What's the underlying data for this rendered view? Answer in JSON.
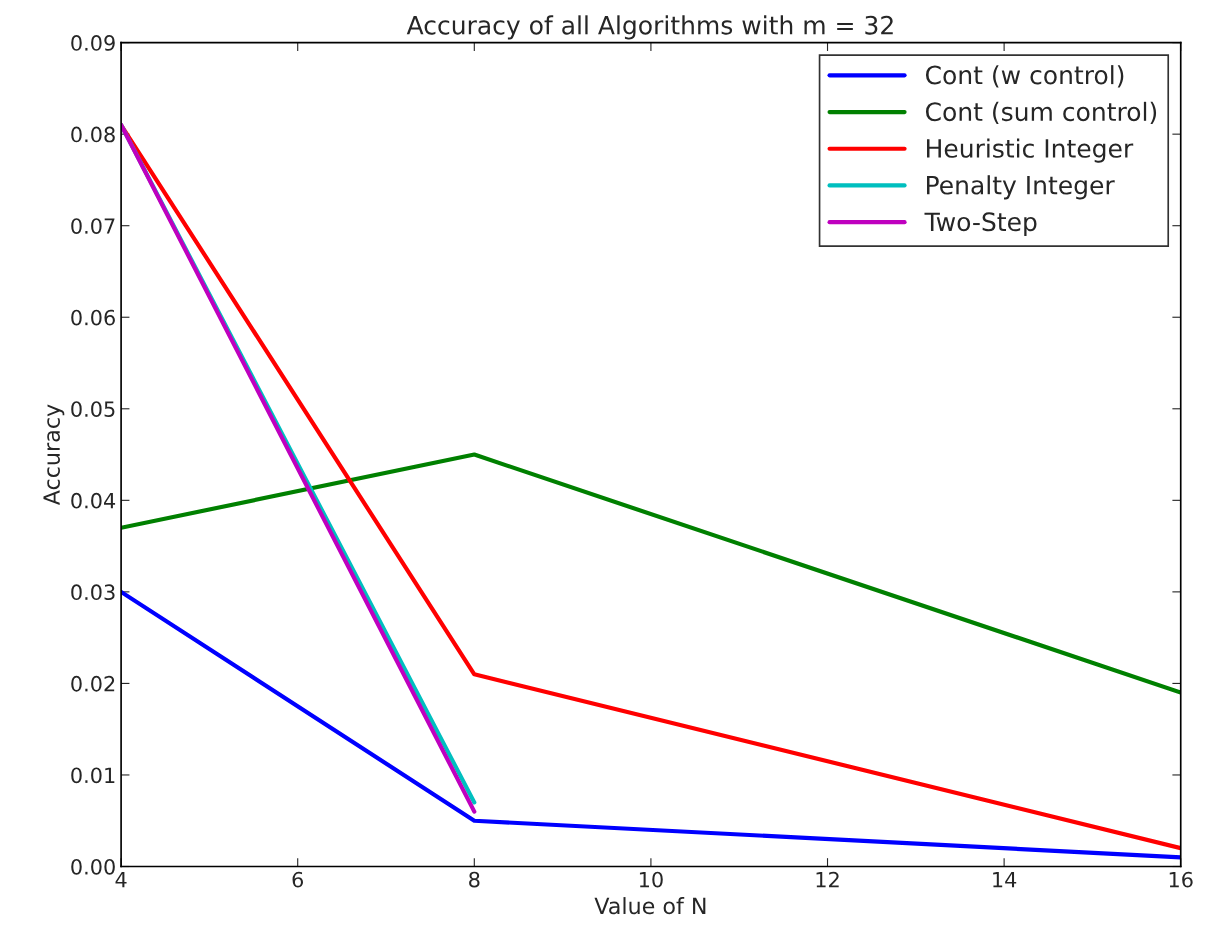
{
  "chart_data": {
    "type": "line",
    "title": "Accuracy of all Algorithms with m = 32",
    "xlabel": "Value of N",
    "ylabel": "Accuracy",
    "series": [
      {
        "name": "Cont (w control)",
        "color": "#0000ff",
        "x": [
          4,
          8,
          16
        ],
        "values": [
          0.03,
          0.005,
          0.001
        ]
      },
      {
        "name": "Cont (sum control)",
        "color": "#008000",
        "x": [
          4,
          8,
          16
        ],
        "values": [
          0.037,
          0.045,
          0.019
        ]
      },
      {
        "name": "Heuristic Integer",
        "color": "#ff0000",
        "x": [
          4,
          8,
          16
        ],
        "values": [
          0.081,
          0.021,
          0.002
        ]
      },
      {
        "name": "Penalty Integer",
        "color": "#00bfbf",
        "x": [
          4,
          8
        ],
        "values": [
          0.081,
          0.007
        ]
      },
      {
        "name": "Two-Step",
        "color": "#bf00bf",
        "x": [
          4,
          8
        ],
        "values": [
          0.081,
          0.006
        ]
      }
    ],
    "xlim": [
      4,
      16
    ],
    "xticks": [
      4,
      6,
      8,
      10,
      12,
      14,
      16
    ],
    "ylim": [
      0,
      0.09
    ],
    "yticks": [
      {
        "value": 0,
        "label": "0.00"
      },
      {
        "value": 0.01,
        "label": "0.01"
      },
      {
        "value": 0.02,
        "label": "0.02"
      },
      {
        "value": 0.03,
        "label": "0.03"
      },
      {
        "value": 0.04,
        "label": "0.04"
      },
      {
        "value": 0.05,
        "label": "0.05"
      },
      {
        "value": 0.06,
        "label": "0.06"
      },
      {
        "value": 0.07,
        "label": "0.07"
      },
      {
        "value": 0.08,
        "label": "0.08"
      },
      {
        "value": 0.09,
        "label": "0.09"
      }
    ],
    "legend": "top right",
    "grid": false
  }
}
